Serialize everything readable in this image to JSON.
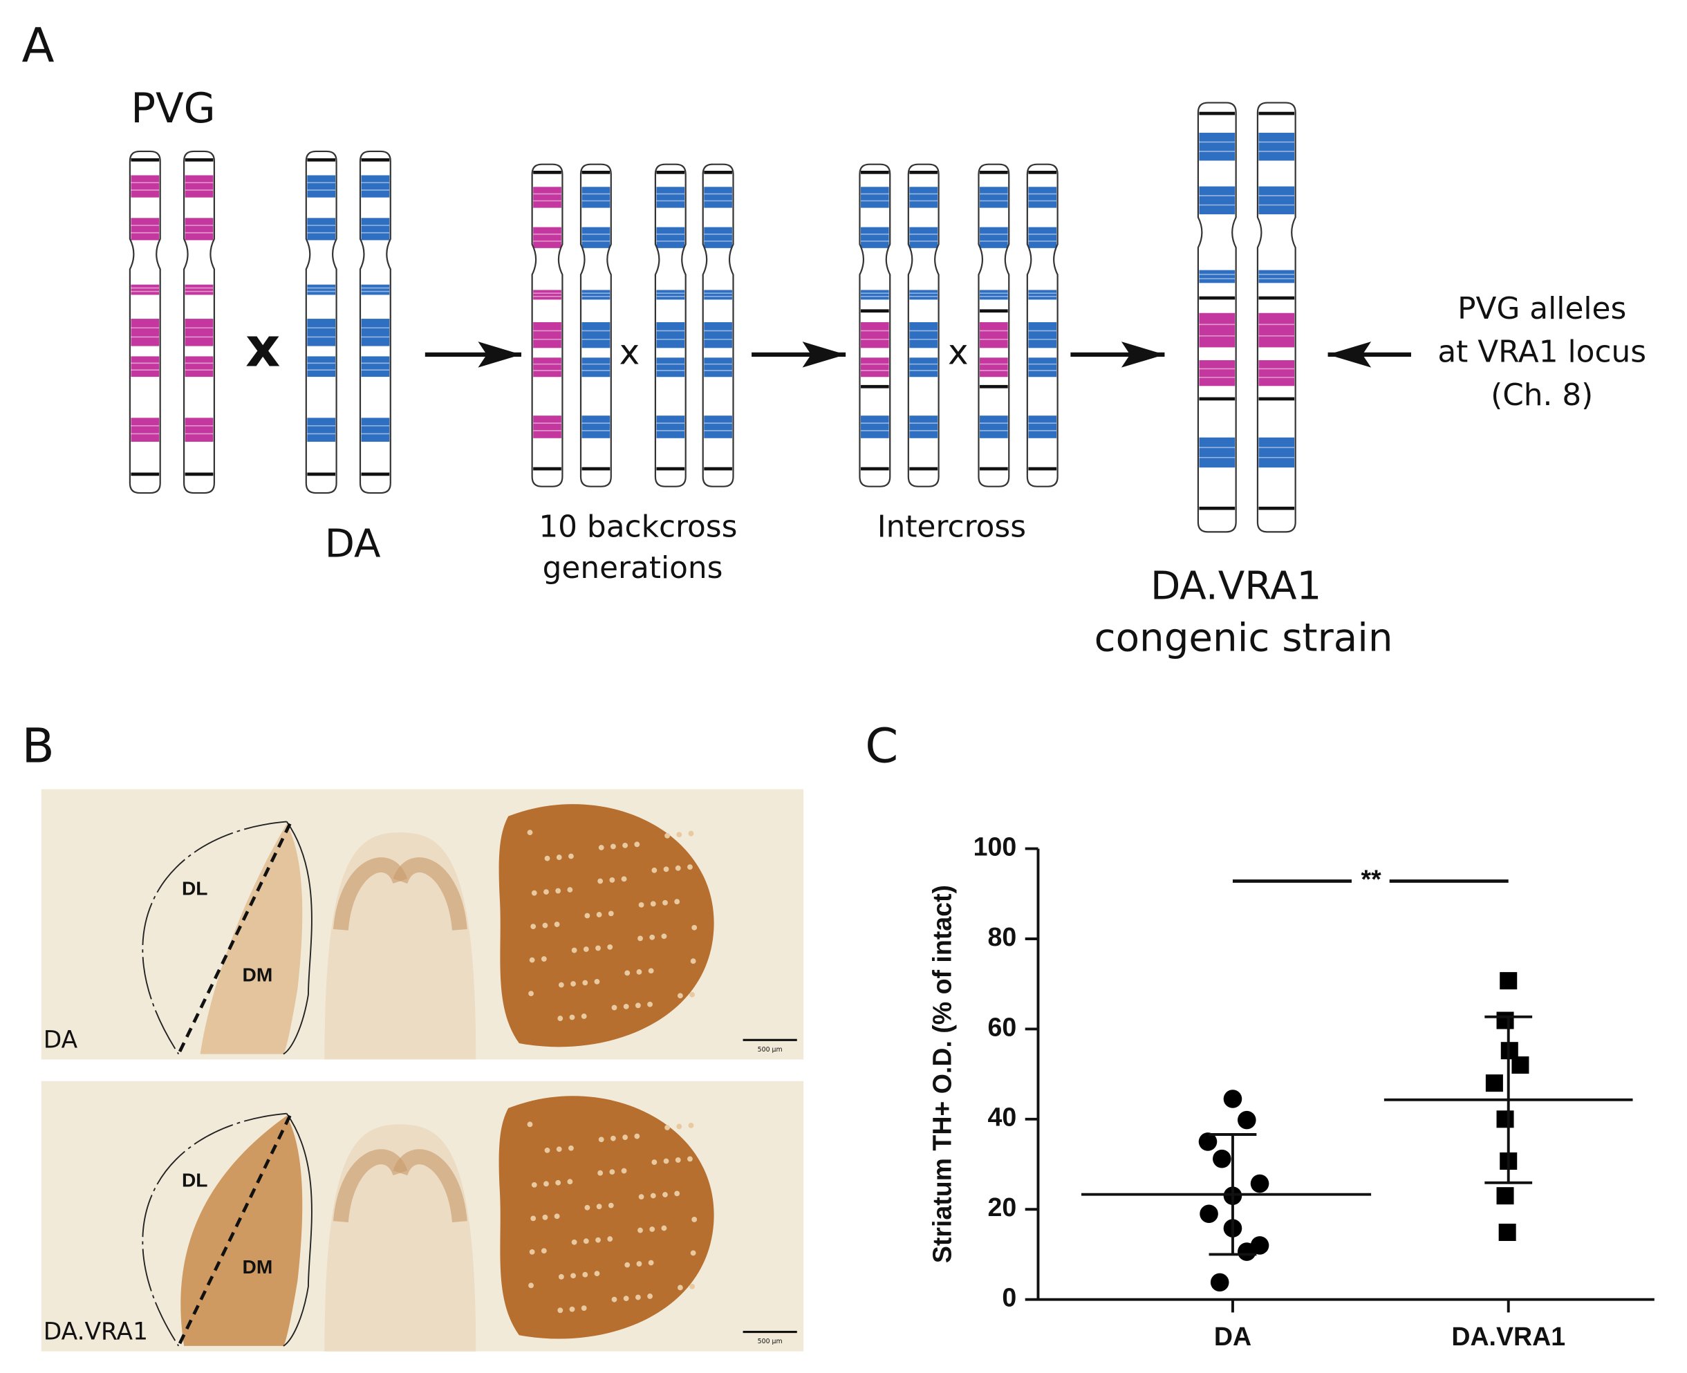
{
  "panels": {
    "a": "A",
    "b": "B",
    "c": "C"
  },
  "diagram": {
    "pvg": "PVG",
    "cross": "x",
    "da": "DA",
    "backcross": [
      "10 backcross",
      "generations"
    ],
    "cross2": "x",
    "intercross": "Intercross",
    "cross3": "x",
    "result": [
      "DA.VRA1",
      "congenic strain"
    ],
    "note": [
      "PVG alleles",
      "at VRA1 locus",
      "(Ch. 8)"
    ]
  },
  "images": [
    {
      "regions": [
        "DL",
        "DM"
      ],
      "caption": "DA",
      "scale_bar": "500 µm"
    },
    {
      "regions": [
        "DL",
        "DM"
      ],
      "caption": "DA.VRA1",
      "scale_bar": "500 µm"
    }
  ],
  "chart_data": {
    "type": "scatter",
    "ylabel": "Striatum TH+ O.D. (% of intact)",
    "categories": [
      "DA",
      "DA.VRA1"
    ],
    "series": [
      {
        "marker": "circle",
        "color": "#000000",
        "values": [
          44.5,
          39.8,
          35,
          31.2,
          25.7,
          23,
          19,
          15.8,
          12,
          10.6,
          3.8
        ]
      },
      {
        "marker": "square",
        "color": "#000000",
        "values": [
          70.7,
          61.9,
          55.2,
          52,
          48,
          40,
          30.7,
          23,
          14.9
        ]
      }
    ],
    "means": [
      23.3,
      44.3
    ],
    "sd": [
      13.3,
      18.4
    ],
    "significance": "**",
    "ylim": [
      0,
      100
    ],
    "yticks": [
      0,
      20,
      40,
      60,
      80,
      100
    ]
  }
}
